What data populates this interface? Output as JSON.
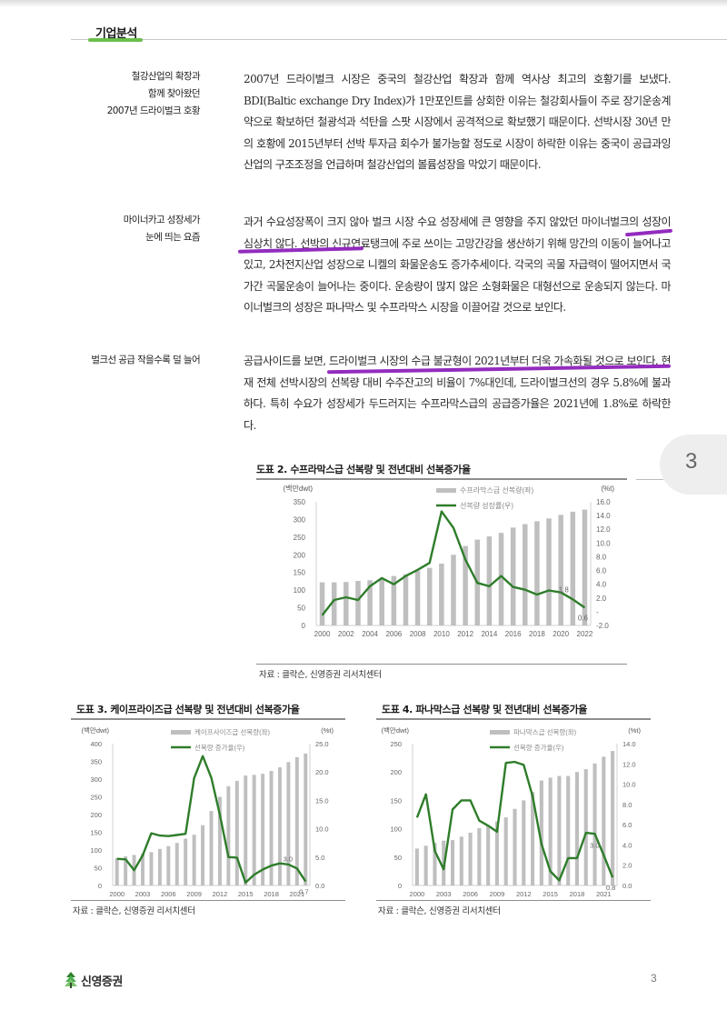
{
  "header": {
    "section_title": "기업분석",
    "accent_color": "#6abf4b"
  },
  "sections": [
    {
      "side_label": [
        "철강산업의 확장과",
        "함께 찾아왔던",
        "2007년 드라이벌크 호황"
      ],
      "body": "2007년 드라이벌크 시장은 중국의 철강산업 확장과 함께 역사상 최고의 호황기를 보냈다. BDI(Baltic exchange Dry Index)가 1만포인트를 상회한 이유는 철강회사들이 주로 장기운송계약으로 확보하던 철광석과 석탄을 스팟 시장에서 공격적으로 확보했기 때문이다. 선박시장 30년 만의 호황에 2015년부터 선박 투자금 회수가 불가능할 정도로 시장이 하락한 이유는 중국이 공급과잉 산업의 구조조정을 언급하며 철강산업의 볼륨성장을 막았기 때문이다."
    },
    {
      "side_label": [
        "마이너카고 성장세가",
        "눈에 띄는 요즘"
      ],
      "body": "과거 수요성장폭이 크지 않아 벌크 시장 수요 성장세에 큰 영향을 주지 않았던 마이너벌크의 성장이 심상치 않다. 선박의 신규연료탱크에 주로 쓰이는 고망간강을 생산하기 위해 망간의 이동이 늘어나고 있고, 2차전지산업 성장으로 니켈의 화물운송도 증가추세이다. 각국의 곡물 자급력이 떨어지면서 국가간 곡물운송이 늘어나는 중이다. 운송량이 많지 않은 소형화물은 대형선으로 운송되지 않는다. 마이너벌크의 성장은 파나막스 및 수프라막스 시장을 이끌어갈 것으로 보인다."
    },
    {
      "side_label": [
        "벌크선 공급 작을수록 덜 늘어"
      ],
      "body": "공급사이드를 보면, 드라이벌크 시장의 수급 불균형이 2021년부터 더욱 가속화될 것으로 보인다. 현재 전체 선박시장의 선복량 대비 수주잔고의 비율이 7%대인데, 드라이벌크선의 경우 5.8%에 불과하다. 특히 수요가 성장세가 두드러지는 수프라막스급의 공급증가율은 2021년에 1.8%로 하락한다."
    }
  ],
  "highlight_color": "#8a1ab8",
  "page_tab": {
    "label": "3"
  },
  "figures": {
    "fig2": {
      "title": "도표 2. 수프라막스급 선복량 및 전년대비 선복증가율",
      "source": "자료 : 클락슨, 신영증권 리서치센터"
    },
    "fig3": {
      "title": "도표 3. 케이프라이즈급 선복량 및 전년대비 선복증가율",
      "source": "자료 : 클락슨, 신영증권 리서치센터"
    },
    "fig4": {
      "title": "도표 4. 파나막스급 선복량 및 전년대비 선복증가율",
      "source": "자료 : 클락슨, 신영증권 리서치센터"
    }
  },
  "chart_data": [
    {
      "id": "fig2",
      "type": "bar+line",
      "title": "도표 2. 수프라막스급 선복량 및 전년대비 선복증가율",
      "x": [
        2000,
        2001,
        2002,
        2003,
        2004,
        2005,
        2006,
        2007,
        2008,
        2009,
        2010,
        2011,
        2012,
        2013,
        2014,
        2015,
        2016,
        2017,
        2018,
        2019,
        2020,
        2021,
        2022
      ],
      "xticks": [
        "2000",
        "2002",
        "2004",
        "2006",
        "2008",
        "2010",
        "2012",
        "2014",
        "2016",
        "2018",
        "2020",
        "2022"
      ],
      "ylabel_left": "(백만dwt)",
      "ylim_left": [
        0,
        350
      ],
      "yticks_left": [
        0,
        50,
        100,
        150,
        200,
        250,
        300,
        350
      ],
      "ylabel_right": "(%t)",
      "ylim_right": [
        -2,
        16
      ],
      "yticks_right": [
        "-2.0",
        "-",
        "2.0",
        "4.0",
        "6.0",
        "8.0",
        "10.0",
        "12.0",
        "14.0",
        "16.0"
      ],
      "series": [
        {
          "name": "수프라막스급 선복량(좌)",
          "type": "bar",
          "color": "#bfbfbf",
          "values": [
            122,
            122,
            123,
            126,
            128,
            133,
            140,
            145,
            155,
            163,
            175,
            200,
            225,
            243,
            252,
            262,
            277,
            287,
            295,
            303,
            313,
            322,
            328
          ]
        },
        {
          "name": "선복량 성장률(우)",
          "type": "line",
          "color": "#2e7d2a",
          "values": [
            -0.5,
            1.7,
            2.1,
            1.7,
            3.7,
            4.9,
            4.0,
            5.2,
            6.1,
            7.1,
            14.6,
            12.2,
            7.6,
            4.2,
            3.7,
            5.2,
            3.6,
            3.2,
            2.5,
            3.1,
            2.8,
            1.8,
            0.6
          ]
        }
      ],
      "annotations": [
        "1.8",
        "0.6"
      ],
      "legend_position": "top-center"
    },
    {
      "id": "fig3",
      "type": "bar+line",
      "title": "도표 3. 케이프라이즈급 선복량 및 전년대비 선복증가율",
      "x": [
        2000,
        2001,
        2002,
        2003,
        2004,
        2005,
        2006,
        2007,
        2008,
        2009,
        2010,
        2011,
        2012,
        2013,
        2014,
        2015,
        2016,
        2017,
        2018,
        2019,
        2020,
        2021,
        2022
      ],
      "xticks": [
        "2000",
        "2003",
        "2006",
        "2009",
        "2012",
        "2015",
        "2018",
        "2021"
      ],
      "ylabel_left": "(백만dwt)",
      "ylim_left": [
        0,
        400
      ],
      "yticks_left": [
        0,
        50,
        100,
        150,
        200,
        250,
        300,
        350,
        400
      ],
      "ylabel_right": "(%t)",
      "ylim_right": [
        0,
        25
      ],
      "yticks_right": [
        "0.0",
        "5.0",
        "10.0",
        "15.0",
        "20.0",
        "25.0"
      ],
      "series": [
        {
          "name": "케이프사이즈급 선복량(좌)",
          "type": "bar",
          "color": "#bfbfbf",
          "values": [
            77,
            82,
            86,
            90,
            94,
            103,
            111,
            120,
            132,
            143,
            170,
            210,
            250,
            280,
            295,
            310,
            312,
            315,
            323,
            333,
            348,
            362,
            372
          ]
        },
        {
          "name": "선복량 증가율(우)",
          "type": "line",
          "color": "#2e7d2a",
          "values": [
            4.7,
            4.6,
            2.7,
            5.3,
            9.2,
            8.8,
            8.7,
            8.9,
            9.1,
            18.9,
            22.8,
            19.0,
            12.5,
            5.0,
            4.9,
            0.5,
            1.9,
            2.8,
            3.5,
            3.9,
            3.7,
            3.0,
            0.7
          ]
        }
      ],
      "annotations": [
        "3.0",
        "0.7"
      ],
      "legend_position": "top-center"
    },
    {
      "id": "fig4",
      "type": "bar+line",
      "title": "도표 4. 파나막스급 선복량 및 전년대비 선복증가율",
      "x": [
        2000,
        2001,
        2002,
        2003,
        2004,
        2005,
        2006,
        2007,
        2008,
        2009,
        2010,
        2011,
        2012,
        2013,
        2014,
        2015,
        2016,
        2017,
        2018,
        2019,
        2020,
        2021,
        2022
      ],
      "xticks": [
        "2000",
        "2003",
        "2006",
        "2009",
        "2012",
        "2015",
        "2018",
        "2021"
      ],
      "ylabel_left": "(백만dwt)",
      "ylim_left": [
        0,
        250
      ],
      "yticks_left": [
        0,
        50,
        100,
        150,
        200,
        250
      ],
      "ylabel_right": "(%t)",
      "ylim_right": [
        0,
        14
      ],
      "yticks_right": [
        "0.0",
        "2.0",
        "4.0",
        "6.0",
        "8.0",
        "10.0",
        "12.0",
        "14.0"
      ],
      "series": [
        {
          "name": "파나막스급 선복량(좌)",
          "type": "bar",
          "color": "#bfbfbf",
          "values": [
            65,
            70,
            75,
            79,
            80,
            86,
            93,
            101,
            105,
            113,
            120,
            135,
            150,
            165,
            185,
            190,
            193,
            193,
            200,
            205,
            215,
            227,
            237
          ]
        },
        {
          "name": "선복량 증가율(우)",
          "type": "line",
          "color": "#2e7d2a",
          "values": [
            6.7,
            9.0,
            3.4,
            1.6,
            7.5,
            8.4,
            8.4,
            6.4,
            5.9,
            5.3,
            12.1,
            12.2,
            11.9,
            8.8,
            4.1,
            1.4,
            0.5,
            2.7,
            2.7,
            5.2,
            5.1,
            3.0,
            0.8
          ]
        }
      ],
      "annotations": [
        "3.0",
        "0.8"
      ],
      "legend_position": "top-center"
    }
  ],
  "footer": {
    "brand": "신영증권",
    "page_number": "3"
  }
}
